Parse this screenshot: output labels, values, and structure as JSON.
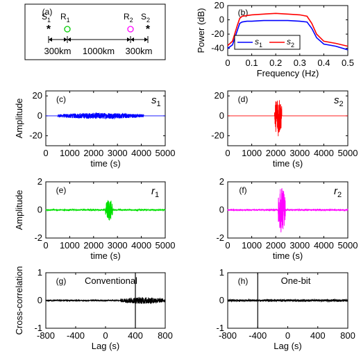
{
  "chart_data": [
    {
      "panel": "(a)",
      "type": "diagram",
      "stations": [
        {
          "name": "S",
          "sub": "1",
          "marker": "*",
          "color": "#0000ff"
        },
        {
          "name": "R",
          "sub": "1",
          "marker": "o",
          "color": "#00cc00"
        },
        {
          "name": "R",
          "sub": "2",
          "marker": "o",
          "color": "#ff00ff"
        },
        {
          "name": "S",
          "sub": "2",
          "marker": "*",
          "color": "#ff0000"
        }
      ],
      "distances": [
        "300km",
        "1000km",
        "300km"
      ]
    },
    {
      "panel": "(b)",
      "type": "line",
      "xlabel": "Frequency (Hz)",
      "ylabel": "Power (dB)",
      "xlim": [
        0,
        0.5
      ],
      "ylim": [
        -50,
        20
      ],
      "xticks": [
        "0",
        "0.1",
        "0.2",
        "0.3",
        "0.4",
        "0.5"
      ],
      "yticks": [
        "20",
        "0",
        "-20",
        "-40"
      ],
      "x": [
        0,
        0.02,
        0.04,
        0.05,
        0.06,
        0.08,
        0.1,
        0.15,
        0.2,
        0.25,
        0.3,
        0.33,
        0.35,
        0.37,
        0.4,
        0.45,
        0.5
      ],
      "series": [
        {
          "name": "s",
          "sub": "1",
          "color": "#0000ff",
          "values": [
            -40,
            -35,
            -15,
            -5,
            -3,
            -2,
            -2,
            -1,
            -1,
            -1,
            -2,
            -3,
            -12,
            -25,
            -34,
            -37,
            -42
          ]
        },
        {
          "name": "s",
          "sub": "2",
          "color": "#ff0000",
          "values": [
            -36,
            -30,
            -8,
            2,
            5,
            6,
            7,
            8,
            9,
            8,
            7,
            5,
            -5,
            -20,
            -30,
            -33,
            -37
          ]
        }
      ],
      "legend": "lower-center"
    },
    {
      "panel": "(c)",
      "trace_label": "s",
      "trace_sub": "1",
      "type": "line",
      "ylabel": "Amplitude",
      "xlabel": "time (s)",
      "xlim": [
        0,
        5000
      ],
      "ylim": [
        -30,
        25
      ],
      "xticks": [
        "0",
        "1000",
        "2000",
        "3000",
        "4000",
        "5000"
      ],
      "yticks": [
        "20",
        "0",
        "-20"
      ],
      "color": "#0000ff",
      "signal": {
        "kind": "burst",
        "start": 500,
        "end": 4100,
        "peak_amp": 3,
        "baseline_amp": 0
      }
    },
    {
      "panel": "(d)",
      "trace_label": "s",
      "trace_sub": "2",
      "type": "line",
      "ylabel": "",
      "xlabel": "time (s)",
      "xlim": [
        0,
        5000
      ],
      "ylim": [
        -30,
        25
      ],
      "xticks": [
        "0",
        "1000",
        "2000",
        "3000",
        "4000",
        "5000"
      ],
      "yticks": [
        "20",
        "0",
        "-20"
      ],
      "color": "#ff0000",
      "signal": {
        "kind": "burst",
        "start": 1950,
        "end": 2250,
        "peak_amp": 21,
        "baseline_amp": 0
      }
    },
    {
      "panel": "(e)",
      "trace_label": "r",
      "trace_sub": "1",
      "type": "line",
      "ylabel": "Amplitude",
      "xlabel": "time (s)",
      "xlim": [
        0,
        5000
      ],
      "ylim": [
        -2,
        2
      ],
      "xticks": [
        "0",
        "1000",
        "2000",
        "3000",
        "4000",
        "5000"
      ],
      "yticks": [
        "2",
        "0",
        "-2"
      ],
      "color": "#00e000",
      "signal": {
        "kind": "burst",
        "start": 2500,
        "end": 2800,
        "peak_amp": 0.8,
        "baseline_amp": 0.05
      }
    },
    {
      "panel": "(f)",
      "trace_label": "r",
      "trace_sub": "2",
      "type": "line",
      "ylabel": "",
      "xlabel": "time (s)",
      "xlim": [
        0,
        5000
      ],
      "ylim": [
        -2,
        2
      ],
      "xticks": [
        "0",
        "1000",
        "2000",
        "3000",
        "4000",
        "5000"
      ],
      "yticks": [
        "2",
        "0",
        "-2"
      ],
      "color": "#ff00ff",
      "signal": {
        "kind": "burst",
        "start": 2100,
        "end": 2400,
        "peak_amp": 1.7,
        "baseline_amp": 0.05
      }
    },
    {
      "panel": "(g)",
      "title": "Conventional",
      "type": "line",
      "ylabel": "Cross-correlation",
      "xlabel": "Lag (s)",
      "xlim": [
        -800,
        800
      ],
      "ylim": [
        -1,
        1
      ],
      "xticks": [
        "-800",
        "-400",
        "0",
        "400",
        "800"
      ],
      "yticks": [
        "1",
        "0",
        "-1"
      ],
      "color": "#000000",
      "signal": {
        "kind": "xcorr",
        "noise_amp": 0.02,
        "burst_start": 200,
        "burst_end": 800,
        "burst_amp": 0.12,
        "spike_lag": 400,
        "spike_amp": 1.0
      }
    },
    {
      "panel": "(h)",
      "title": "One-bit",
      "type": "line",
      "ylabel": "",
      "xlabel": "Lag (s)",
      "xlim": [
        -800,
        800
      ],
      "ylim": [
        -1,
        1
      ],
      "xticks": [
        "-800",
        "-400",
        "0",
        "400",
        "800"
      ],
      "yticks": [
        "1",
        "0",
        "-1"
      ],
      "color": "#000000",
      "signal": {
        "kind": "xcorr",
        "noise_amp": 0.04,
        "burst_start": 0,
        "burst_end": 0,
        "burst_amp": 0,
        "spike_lag": -400,
        "spike_amp": 1.0
      }
    }
  ]
}
